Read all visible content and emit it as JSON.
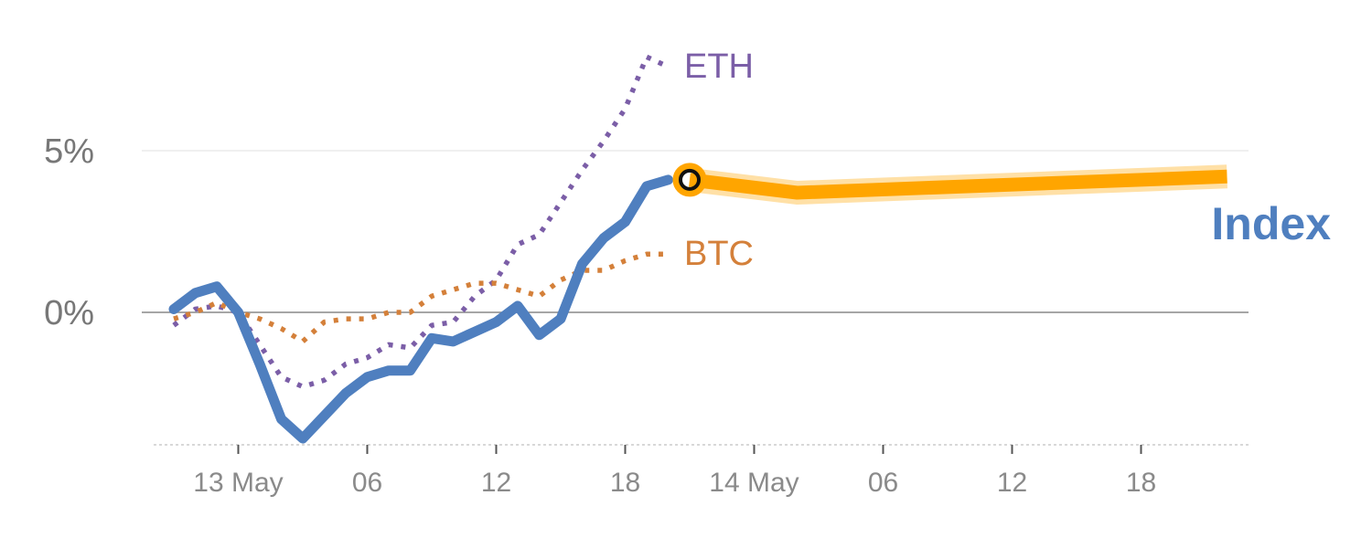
{
  "chart_data": {
    "type": "line",
    "y_unit": "%",
    "ylim": [
      -4,
      9.5
    ],
    "y_ticks": [
      {
        "value": 0,
        "label": "0%"
      },
      {
        "value": 5,
        "label": "5%"
      }
    ],
    "x_ticks": [
      {
        "x": 3,
        "label": "13 May"
      },
      {
        "x": 9,
        "label": "06"
      },
      {
        "x": 15,
        "label": "12"
      },
      {
        "x": 21,
        "label": "18"
      },
      {
        "x": 27,
        "label": "14 May"
      },
      {
        "x": 33,
        "label": "06"
      },
      {
        "x": 39,
        "label": "12"
      },
      {
        "x": 45,
        "label": "18"
      }
    ],
    "xlim": [
      -0.5,
      50.5
    ],
    "grid": "horizontal",
    "series": [
      {
        "name": "ETH",
        "style": "dotted",
        "color": "#7b5ea7",
        "x": [
          0,
          1,
          2,
          3,
          4,
          5,
          6,
          7,
          8,
          9,
          10,
          11,
          12,
          13,
          14,
          15,
          16,
          17,
          18,
          19,
          20,
          21,
          22,
          23
        ],
        "y": [
          -0.4,
          0.1,
          0.2,
          0.0,
          -1.0,
          -2.0,
          -2.3,
          -2.1,
          -1.6,
          -1.4,
          -1.0,
          -1.1,
          -0.4,
          -0.3,
          0.5,
          1.0,
          2.1,
          2.4,
          3.4,
          4.4,
          5.3,
          6.3,
          7.9,
          7.6
        ]
      },
      {
        "name": "BTC",
        "style": "dotted",
        "color": "#d4803a",
        "x": [
          0,
          1,
          2,
          3,
          4,
          5,
          6,
          7,
          8,
          9,
          10,
          11,
          12,
          13,
          14,
          15,
          16,
          17,
          18,
          19,
          20,
          21,
          22,
          23
        ],
        "y": [
          -0.2,
          0.0,
          0.3,
          0.0,
          -0.2,
          -0.5,
          -0.9,
          -0.3,
          -0.2,
          -0.2,
          0.0,
          0.0,
          0.5,
          0.7,
          0.9,
          0.9,
          0.7,
          0.5,
          1.0,
          1.3,
          1.3,
          1.6,
          1.8,
          1.8
        ]
      },
      {
        "name": "Index",
        "style": "solid",
        "color": "#4f7fbf",
        "x": [
          0,
          1,
          2,
          3,
          4,
          5,
          6,
          7,
          8,
          9,
          10,
          11,
          12,
          13,
          14,
          15,
          16,
          17,
          18,
          19,
          20,
          21,
          22,
          23
        ],
        "y": [
          0.1,
          0.6,
          0.8,
          0.0,
          -1.6,
          -3.3,
          -3.9,
          -3.2,
          -2.5,
          -2.0,
          -1.8,
          -1.8,
          -0.8,
          -0.9,
          -0.6,
          -0.3,
          0.2,
          -0.7,
          -0.2,
          1.5,
          2.3,
          2.8,
          3.9,
          4.1
        ]
      }
    ],
    "forecast": {
      "of": "Index",
      "color": "#ffa500",
      "x": [
        24,
        29,
        49
      ],
      "y": [
        4.1,
        3.7,
        4.2
      ]
    },
    "marker": {
      "x": 24,
      "y": 4.1,
      "color": "#ffa500"
    },
    "labels": {
      "eth": "ETH",
      "btc": "BTC",
      "index": "Index"
    }
  }
}
